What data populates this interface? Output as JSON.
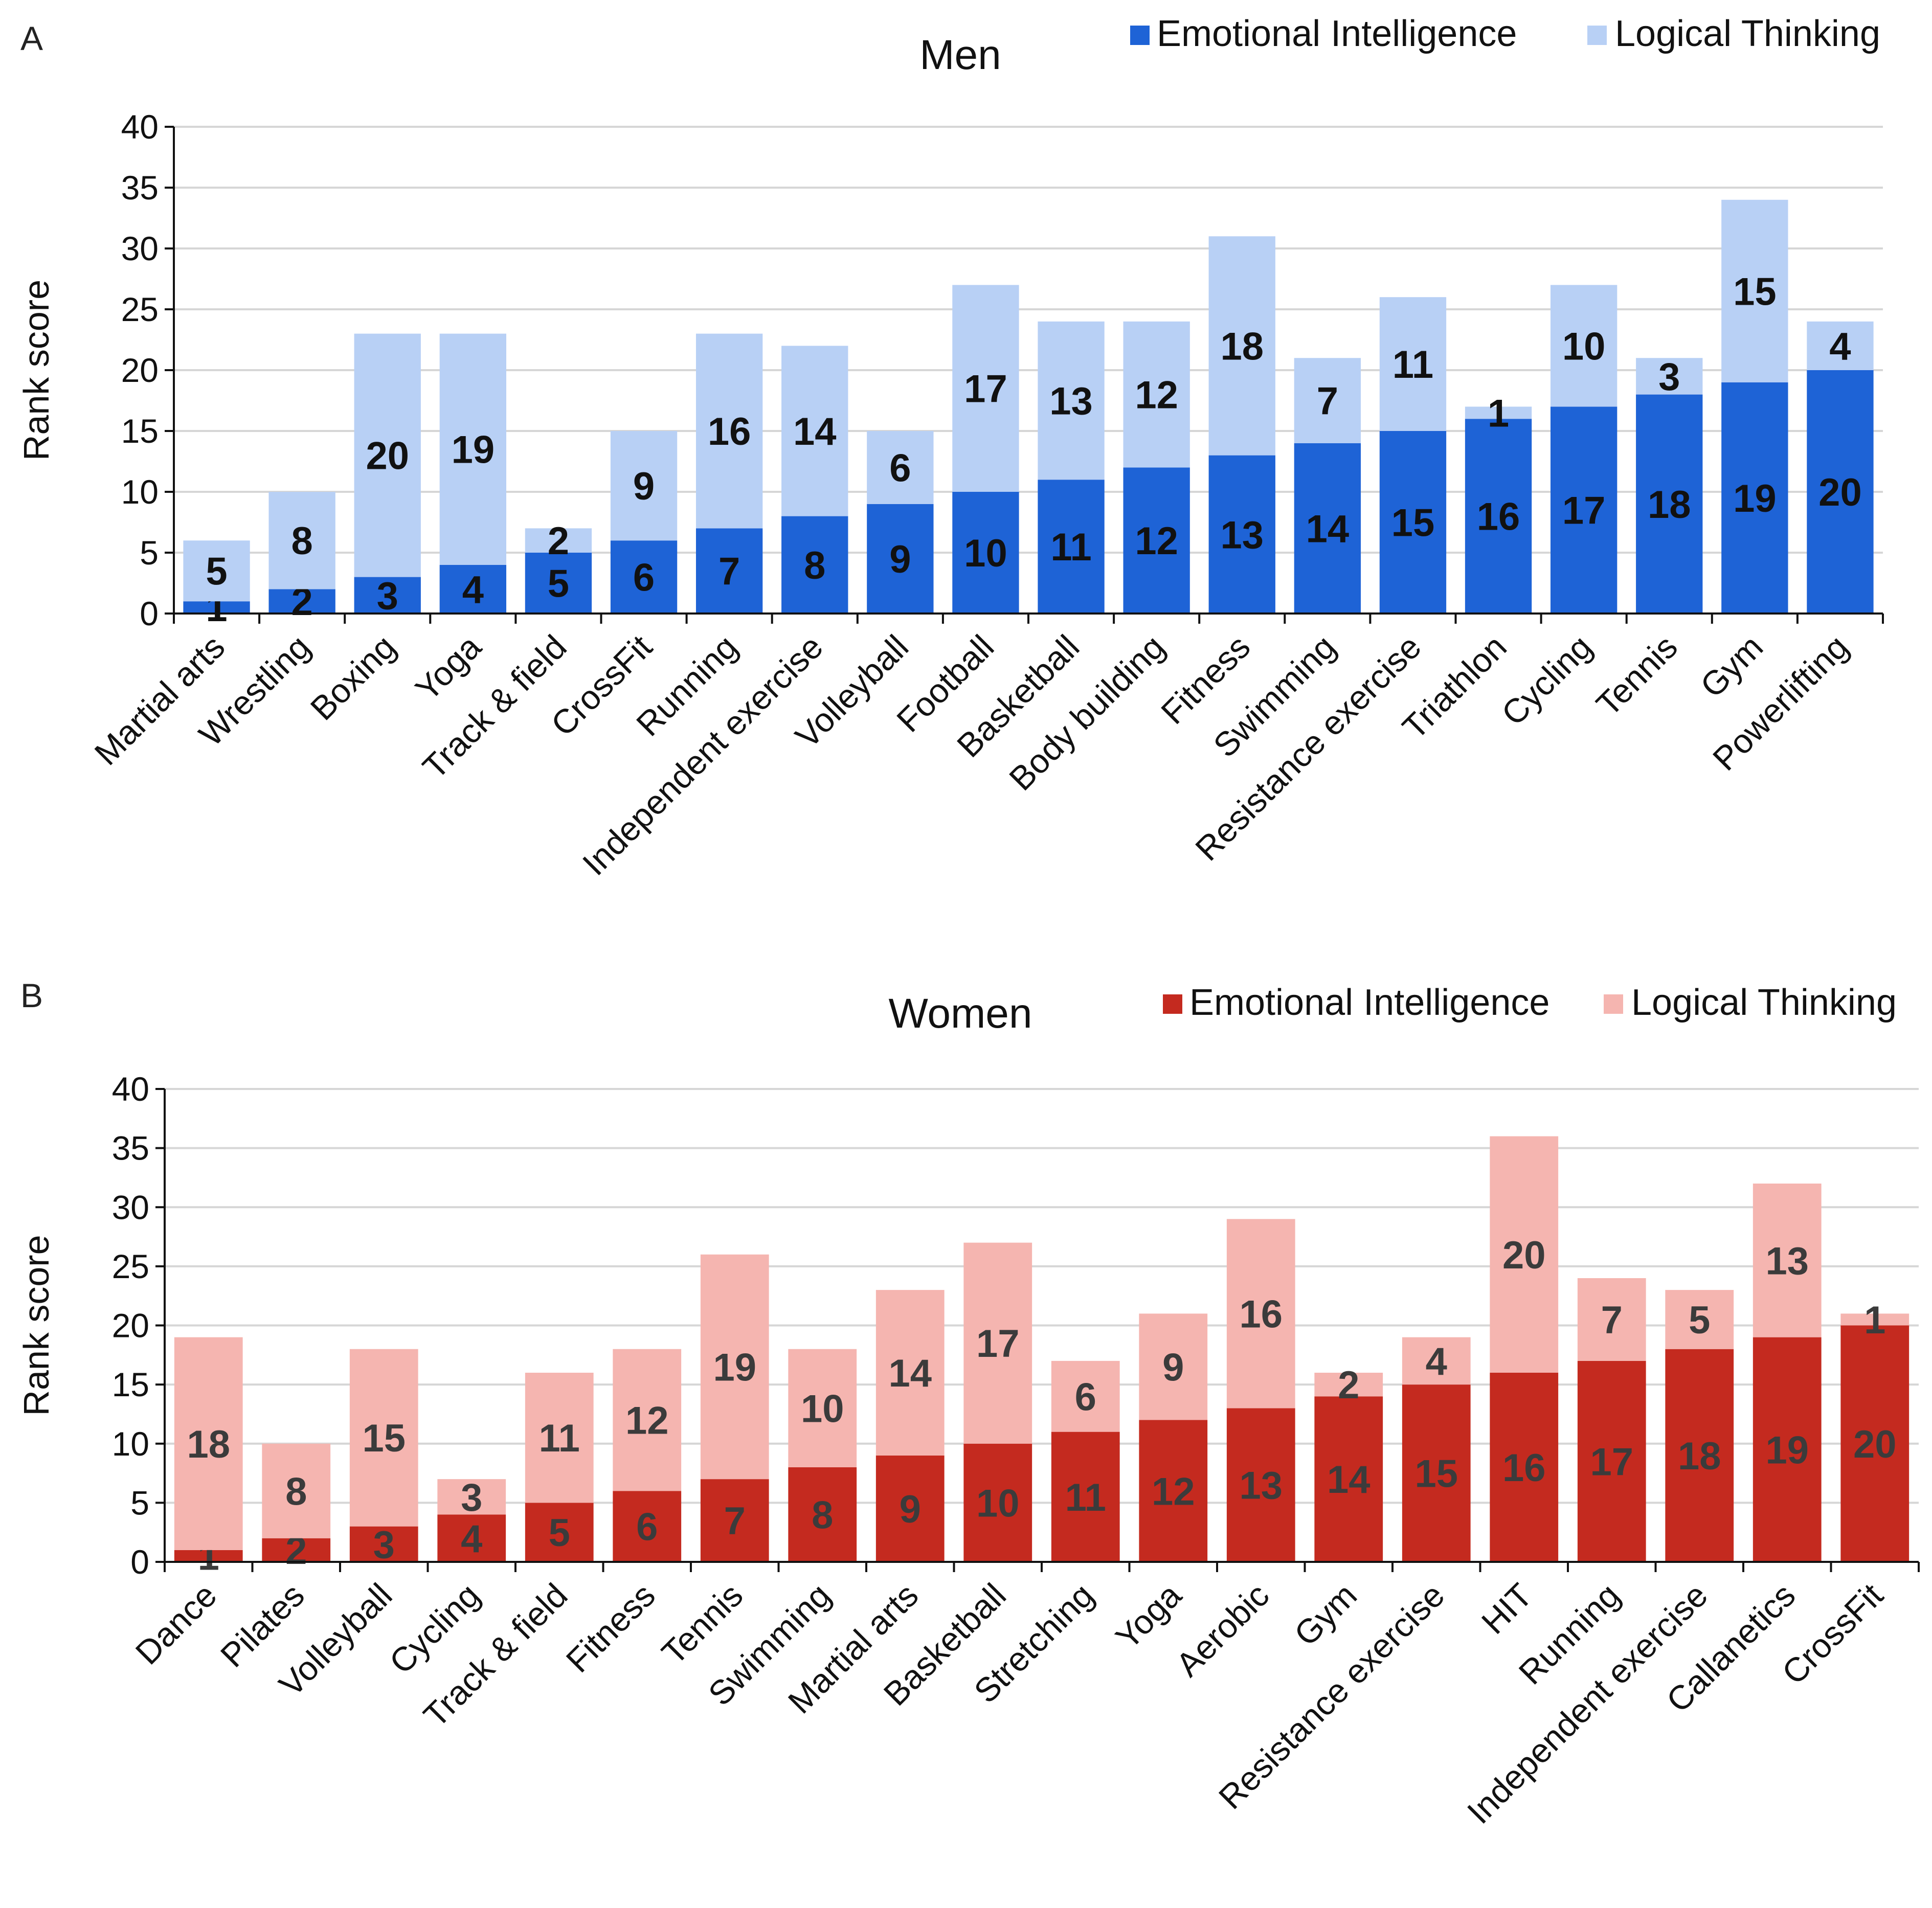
{
  "chart_data": [
    {
      "type": "bar",
      "stacked": true,
      "panel": "A",
      "title": "Men",
      "ylabel": "Rank score",
      "xlabel": "",
      "ylim": [
        0,
        40
      ],
      "yticks": [
        0,
        5,
        10,
        15,
        20,
        25,
        30,
        35,
        40
      ],
      "grid": true,
      "legend": "top-right",
      "categories": [
        "Martial arts",
        "Wrestling",
        "Boxing",
        "Yoga",
        "Track & field",
        "CrossFit",
        "Running",
        "Independent exercise",
        "Volleyball",
        "Football",
        "Basketball",
        "Body building",
        "Fitness",
        "Swimming",
        "Resistance exercise",
        "Triathlon",
        "Cycling",
        "Tennis",
        "Gym",
        "Powerlifting"
      ],
      "series": [
        {
          "name": "Emotional Intelligence",
          "color": "#1e63d6",
          "values": [
            1,
            2,
            3,
            4,
            5,
            6,
            7,
            8,
            9,
            10,
            11,
            12,
            13,
            14,
            15,
            16,
            17,
            18,
            19,
            20
          ]
        },
        {
          "name": "Logical Thinking",
          "color": "#b8d0f5",
          "values": [
            5,
            8,
            20,
            19,
            2,
            9,
            16,
            14,
            6,
            17,
            13,
            12,
            18,
            7,
            11,
            1,
            10,
            3,
            15,
            4
          ]
        }
      ]
    },
    {
      "type": "bar",
      "stacked": true,
      "panel": "B",
      "title": "Women",
      "ylabel": "Rank score",
      "xlabel": "",
      "ylim": [
        0,
        40
      ],
      "yticks": [
        0,
        5,
        10,
        15,
        20,
        25,
        30,
        35,
        40
      ],
      "grid": true,
      "legend": "top-right",
      "categories": [
        "Dance",
        "Pilates",
        "Volleyball",
        "Cycling",
        "Track & field",
        "Fitness",
        "Tennis",
        "Swimming",
        "Martial arts",
        "Basketball",
        "Stretching",
        "Yoga",
        "Aerobic",
        "Gym",
        "Resistance exercise",
        "HIT",
        "Running",
        "Independent exercise",
        "Callanetics",
        "CrossFit"
      ],
      "series": [
        {
          "name": "Emotional Intelligence",
          "color": "#c42a1f",
          "values": [
            1,
            2,
            3,
            4,
            5,
            6,
            7,
            8,
            9,
            10,
            11,
            12,
            13,
            14,
            15,
            16,
            17,
            18,
            19,
            20
          ]
        },
        {
          "name": "Logical Thinking",
          "color": "#f5b5b0",
          "values": [
            18,
            8,
            15,
            3,
            11,
            12,
            19,
            10,
            14,
            17,
            6,
            9,
            16,
            2,
            4,
            20,
            7,
            5,
            13,
            1
          ]
        }
      ]
    }
  ]
}
